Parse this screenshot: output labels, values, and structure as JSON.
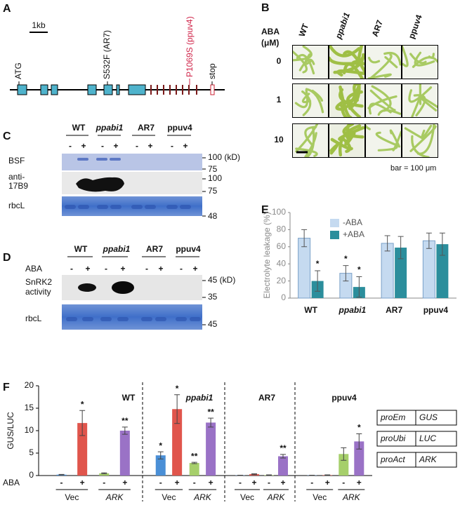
{
  "panel_a": {
    "label": "A",
    "scale": "1kb",
    "annotations": [
      "ATG",
      "S532F (AR7)",
      "P1069S (ppuv4)",
      "stop"
    ]
  },
  "panel_b": {
    "label": "B",
    "row_header": [
      "ABA",
      "(μM)"
    ],
    "columns": [
      "WT",
      "ppabi1",
      "AR7",
      "ppuv4"
    ],
    "rows": [
      "0",
      "1",
      "10"
    ],
    "scale_note": "bar = 100 μm"
  },
  "panel_c": {
    "label": "C",
    "columns": [
      "WT",
      "ppabi1",
      "AR7",
      "ppuv4"
    ],
    "treatments": [
      "-",
      "+"
    ],
    "row_labels": [
      "BSF",
      "anti-",
      "17B9",
      "rbcL"
    ],
    "markers": [
      "100 (kD)",
      "75",
      "100",
      "75",
      "48"
    ]
  },
  "panel_d": {
    "label": "D",
    "columns": [
      "WT",
      "ppabi1",
      "AR7",
      "ppuv4"
    ],
    "treatment_label": "ABA",
    "treatments": [
      "-",
      "+"
    ],
    "row_labels": [
      "SnRK2",
      "activity",
      "rbcL"
    ],
    "markers": [
      "45 (kD)",
      "35",
      "45"
    ]
  },
  "chart_data": [
    {
      "type": "bar",
      "panel": "E",
      "ylabel": "Electrolyte leakage (%)",
      "categories": [
        "WT",
        "ppabi1",
        "AR7",
        "ppuv4"
      ],
      "series": [
        {
          "name": "-ABA",
          "color": "#c5daf0",
          "values": [
            70,
            29,
            64,
            67
          ],
          "errors": [
            10,
            9,
            9,
            9
          ],
          "significance": [
            null,
            "*",
            null,
            null
          ]
        },
        {
          "name": "+ABA",
          "color": "#2b8e9c",
          "values": [
            20,
            13,
            59,
            63
          ],
          "errors": [
            12,
            12,
            13,
            13
          ],
          "significance": [
            "*",
            "*",
            null,
            null
          ]
        }
      ],
      "ylim": [
        0,
        100
      ],
      "yticks": [
        0,
        20,
        40,
        60,
        80,
        100
      ],
      "legend": "top"
    },
    {
      "type": "grouped_bar",
      "panel": "F",
      "ylabel": "GUS/LUC",
      "groups": [
        "WT",
        "ppabi1",
        "AR7",
        "ppuv4"
      ],
      "treatment_label": "ABA",
      "treatment_labels": [
        "-",
        "+",
        "-",
        "+"
      ],
      "construct_labels": [
        "Vec",
        "ARK"
      ],
      "series": [
        {
          "color": "#4a8fd6",
          "values": [
            0.2,
            4.5,
            0.05,
            0.05
          ],
          "errors": [
            0.05,
            0.8,
            0.02,
            0.02
          ],
          "significance": [
            null,
            "*",
            null,
            null
          ]
        },
        {
          "color": "#e0554c",
          "values": [
            11.7,
            14.8,
            0.3,
            0.1
          ],
          "errors": [
            2.8,
            3.2,
            0.1,
            0.05
          ],
          "significance": [
            "*",
            "*",
            null,
            null
          ]
        },
        {
          "color": "#a6cf6b",
          "values": [
            0.5,
            2.8,
            0.1,
            4.8
          ],
          "errors": [
            0.1,
            0.15,
            0.05,
            1.4
          ],
          "significance": [
            null,
            "**",
            null,
            null
          ]
        },
        {
          "color": "#9a72c6",
          "values": [
            10.0,
            11.8,
            4.3,
            7.6
          ],
          "errors": [
            0.8,
            1.0,
            0.4,
            1.7
          ],
          "significance": [
            "**",
            "**",
            "**",
            "*"
          ]
        }
      ],
      "ylim": [
        0,
        20
      ],
      "yticks": [
        0,
        5,
        10,
        15,
        20
      ],
      "constructs_table": [
        [
          "proEm",
          "GUS"
        ],
        [
          "proUbi",
          "LUC"
        ],
        [
          "proAct",
          "ARK"
        ]
      ]
    }
  ]
}
